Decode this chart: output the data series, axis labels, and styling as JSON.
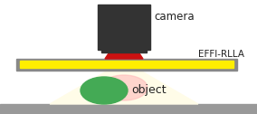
{
  "bg_color": "#ffffff",
  "camera_body_color": "#333333",
  "red_connector_color": "#cc1111",
  "effi_plate_color": "#888888",
  "effi_yellow_color": "#ffee00",
  "green_object_color": "#44aa55",
  "floor_color": "#999999",
  "light_cone_color": "#fffce8",
  "pink_spot_color": "#ffbbbb",
  "font_color": "#222222",
  "title_camera": "camera",
  "title_effi": "EFFI-RLLA",
  "title_object": "object"
}
